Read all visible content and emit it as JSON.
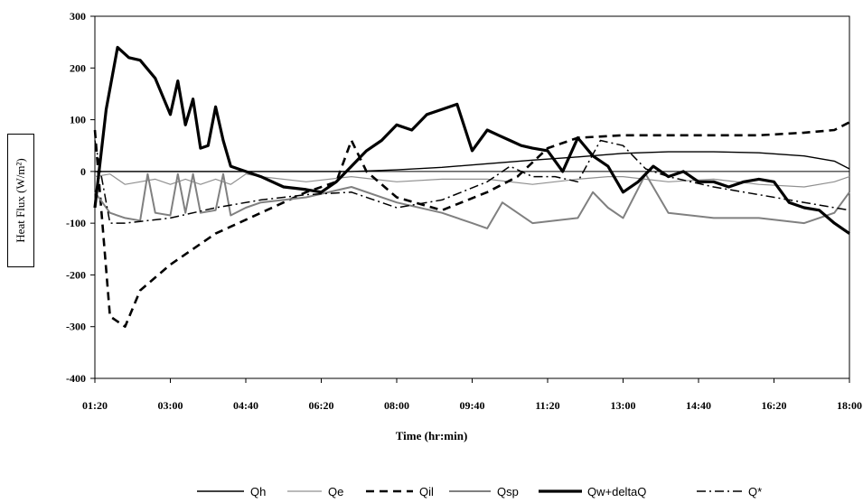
{
  "chart_data": {
    "type": "line",
    "title": "",
    "xlabel": "Time (hr:min)",
    "ylabel": "Heat Flux (W/m²)",
    "ylim": [
      -400,
      300
    ],
    "yticks": [
      "300",
      "200",
      "100",
      "0",
      "-100",
      "-200",
      "-300",
      "-400"
    ],
    "xlim": [
      "01:20",
      "18:00"
    ],
    "xticks": [
      "01:20",
      "03:00",
      "04:40",
      "06:20",
      "08:00",
      "09:40",
      "11:20",
      "13:00",
      "14:40",
      "16:20",
      "18:00"
    ],
    "grid": false,
    "legend_position": "bottom",
    "series": [
      {
        "name": "Qh",
        "style": "solid-thin",
        "color": "#000000",
        "x": [
          "01:20",
          "02:30",
          "04:00",
          "05:00",
          "06:00",
          "07:00",
          "08:00",
          "09:00",
          "10:00",
          "11:00",
          "12:00",
          "13:00",
          "14:00",
          "15:00",
          "16:00",
          "17:00",
          "17:40",
          "18:00"
        ],
        "y": [
          0,
          0,
          0,
          0,
          0,
          0,
          3,
          8,
          15,
          22,
          28,
          35,
          38,
          38,
          36,
          30,
          20,
          5
        ]
      },
      {
        "name": "Qe",
        "style": "solid-thin-gray",
        "color": "#909090",
        "x": [
          "01:20",
          "01:40",
          "02:00",
          "02:20",
          "02:40",
          "03:00",
          "03:20",
          "03:40",
          "04:00",
          "04:20",
          "04:40",
          "05:00",
          "06:00",
          "07:00",
          "08:00",
          "09:00",
          "10:00",
          "11:00",
          "12:00",
          "12:40",
          "13:00",
          "14:00",
          "15:00",
          "16:00",
          "17:00",
          "17:40",
          "18:00"
        ],
        "y": [
          -10,
          -5,
          -25,
          -20,
          -15,
          -25,
          -15,
          -25,
          -15,
          -25,
          -5,
          -10,
          -20,
          -10,
          -20,
          -15,
          -15,
          -25,
          -15,
          -10,
          -10,
          -20,
          -15,
          -25,
          -30,
          -20,
          -10
        ]
      },
      {
        "name": "Qil",
        "style": "dashed",
        "color": "#000000",
        "x": [
          "01:20",
          "01:30",
          "01:40",
          "02:00",
          "02:20",
          "03:00",
          "04:00",
          "05:00",
          "06:00",
          "06:40",
          "07:00",
          "07:20",
          "08:00",
          "09:00",
          "10:00",
          "10:40",
          "11:20",
          "12:00",
          "13:00",
          "14:00",
          "15:00",
          "16:00",
          "17:00",
          "17:40",
          "18:00"
        ],
        "y": [
          80,
          -100,
          -280,
          -300,
          -230,
          -180,
          -120,
          -80,
          -40,
          -20,
          60,
          0,
          -50,
          -75,
          -40,
          -10,
          45,
          65,
          70,
          70,
          70,
          70,
          75,
          80,
          95
        ]
      },
      {
        "name": "Qsp",
        "style": "solid-gray-medium",
        "color": "#808080",
        "x": [
          "01:20",
          "01:40",
          "02:00",
          "02:20",
          "02:30",
          "02:40",
          "03:00",
          "03:10",
          "03:20",
          "03:30",
          "03:40",
          "04:00",
          "04:10",
          "04:20",
          "04:40",
          "05:00",
          "06:00",
          "07:00",
          "08:00",
          "09:00",
          "09:40",
          "10:00",
          "10:20",
          "11:00",
          "12:00",
          "12:20",
          "12:40",
          "13:00",
          "13:30",
          "14:00",
          "15:00",
          "16:00",
          "17:00",
          "17:40",
          "18:00"
        ],
        "y": [
          -40,
          -80,
          -90,
          -95,
          -5,
          -80,
          -85,
          -5,
          -80,
          -5,
          -80,
          -75,
          -5,
          -85,
          -70,
          -60,
          -50,
          -30,
          -60,
          -80,
          -100,
          -110,
          -60,
          -100,
          -90,
          -40,
          -70,
          -90,
          -5,
          -80,
          -90,
          -90,
          -100,
          -80,
          -40
        ]
      },
      {
        "name": "Qw+deltaQ",
        "style": "solid-thick",
        "color": "#000000",
        "x": [
          "01:20",
          "01:35",
          "01:50",
          "02:05",
          "02:20",
          "02:40",
          "03:00",
          "03:10",
          "03:20",
          "03:30",
          "03:40",
          "03:50",
          "04:00",
          "04:10",
          "04:20",
          "04:30",
          "04:40",
          "05:00",
          "05:30",
          "06:00",
          "06:20",
          "06:40",
          "07:00",
          "07:20",
          "07:40",
          "08:00",
          "08:20",
          "08:40",
          "09:00",
          "09:20",
          "09:40",
          "10:00",
          "10:15",
          "10:30",
          "10:45",
          "11:00",
          "11:20",
          "11:40",
          "12:00",
          "12:20",
          "12:40",
          "13:00",
          "13:20",
          "13:40",
          "14:00",
          "14:20",
          "14:40",
          "15:00",
          "15:20",
          "15:40",
          "16:00",
          "16:20",
          "16:40",
          "17:00",
          "17:20",
          "17:40",
          "18:00"
        ],
        "y": [
          -70,
          120,
          240,
          220,
          215,
          180,
          110,
          175,
          90,
          140,
          45,
          50,
          125,
          60,
          10,
          5,
          0,
          -10,
          -30,
          -35,
          -40,
          -20,
          10,
          40,
          60,
          90,
          80,
          110,
          120,
          130,
          40,
          80,
          70,
          60,
          50,
          45,
          40,
          0,
          65,
          30,
          10,
          -40,
          -20,
          10,
          -10,
          0,
          -20,
          -20,
          -30,
          -20,
          -15,
          -20,
          -60,
          -70,
          -75,
          -100,
          -120
        ]
      },
      {
        "name": "Q*",
        "style": "dash-dot",
        "color": "#000000",
        "x": [
          "01:20",
          "01:40",
          "02:00",
          "02:30",
          "03:00",
          "04:00",
          "05:00",
          "06:00",
          "07:00",
          "08:00",
          "09:00",
          "10:00",
          "10:30",
          "11:00",
          "11:30",
          "12:00",
          "12:30",
          "13:00",
          "13:30",
          "14:00",
          "15:00",
          "16:00",
          "17:00",
          "18:00"
        ],
        "y": [
          60,
          -100,
          -100,
          -95,
          -90,
          -70,
          -55,
          -45,
          -40,
          -70,
          -55,
          -20,
          10,
          -10,
          -10,
          -20,
          60,
          50,
          5,
          -10,
          -30,
          -45,
          -60,
          -75
        ]
      }
    ]
  }
}
